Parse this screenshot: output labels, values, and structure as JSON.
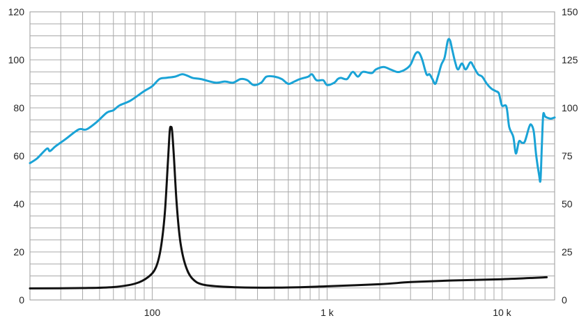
{
  "chart_data": {
    "type": "line",
    "x_scale": "log",
    "xlim": [
      20,
      20000
    ],
    "ylim_left": [
      0,
      120
    ],
    "ylim_right": [
      0,
      150
    ],
    "grid": true,
    "legend": "none",
    "x_tick_labels": [
      {
        "value": 100,
        "label": "100"
      },
      {
        "value": 1000,
        "label": "1 k"
      },
      {
        "value": 10000,
        "label": "10 k"
      }
    ],
    "y_left_ticks": [
      0,
      20,
      40,
      60,
      80,
      100,
      120
    ],
    "y_right_ticks": [
      0,
      25,
      50,
      75,
      100,
      125,
      150
    ],
    "series": [
      {
        "axis": "left",
        "color": "#1aa3d6",
        "points": [
          [
            20,
            57
          ],
          [
            22,
            59
          ],
          [
            25,
            63
          ],
          [
            26,
            62
          ],
          [
            28,
            64
          ],
          [
            32,
            67
          ],
          [
            38,
            71
          ],
          [
            42,
            71
          ],
          [
            48,
            74
          ],
          [
            55,
            78
          ],
          [
            60,
            79
          ],
          [
            65,
            81
          ],
          [
            75,
            83
          ],
          [
            90,
            87
          ],
          [
            100,
            89
          ],
          [
            110,
            92
          ],
          [
            120,
            92.5
          ],
          [
            135,
            93
          ],
          [
            150,
            94
          ],
          [
            170,
            92.5
          ],
          [
            190,
            92
          ],
          [
            230,
            90.5
          ],
          [
            260,
            91
          ],
          [
            290,
            90.5
          ],
          [
            320,
            92
          ],
          [
            350,
            91.5
          ],
          [
            380,
            89.5
          ],
          [
            420,
            90.5
          ],
          [
            450,
            93
          ],
          [
            500,
            93
          ],
          [
            550,
            92
          ],
          [
            600,
            90
          ],
          [
            650,
            91
          ],
          [
            700,
            92
          ],
          [
            780,
            93
          ],
          [
            820,
            94
          ],
          [
            870,
            91.5
          ],
          [
            950,
            91.5
          ],
          [
            1000,
            89.5
          ],
          [
            1100,
            90.5
          ],
          [
            1150,
            92
          ],
          [
            1200,
            92.5
          ],
          [
            1300,
            92
          ],
          [
            1400,
            95
          ],
          [
            1500,
            93
          ],
          [
            1600,
            95
          ],
          [
            1800,
            94.5
          ],
          [
            1900,
            96
          ],
          [
            2100,
            97
          ],
          [
            2300,
            96
          ],
          [
            2500,
            95
          ],
          [
            2600,
            95
          ],
          [
            2800,
            96
          ],
          [
            3000,
            98
          ],
          [
            3200,
            102.5
          ],
          [
            3350,
            103
          ],
          [
            3500,
            100
          ],
          [
            3700,
            94
          ],
          [
            3850,
            94
          ],
          [
            4000,
            92
          ],
          [
            4150,
            90
          ],
          [
            4300,
            93
          ],
          [
            4500,
            98
          ],
          [
            4700,
            101
          ],
          [
            4900,
            108
          ],
          [
            5050,
            108
          ],
          [
            5200,
            104
          ],
          [
            5400,
            99
          ],
          [
            5600,
            96
          ],
          [
            5900,
            98.5
          ],
          [
            6200,
            96
          ],
          [
            6600,
            99
          ],
          [
            6900,
            97
          ],
          [
            7300,
            94
          ],
          [
            7700,
            93
          ],
          [
            8200,
            90
          ],
          [
            8700,
            88
          ],
          [
            9200,
            87
          ],
          [
            9600,
            86
          ],
          [
            10000,
            81
          ],
          [
            10600,
            80.5
          ],
          [
            11000,
            72
          ],
          [
            11600,
            68
          ],
          [
            12000,
            61
          ],
          [
            12500,
            66
          ],
          [
            13000,
            65.5
          ],
          [
            13500,
            66
          ],
          [
            14300,
            72
          ],
          [
            14700,
            73
          ],
          [
            15200,
            70
          ],
          [
            15700,
            60
          ],
          [
            16300,
            52
          ],
          [
            16600,
            50
          ],
          [
            16900,
            64
          ],
          [
            17200,
            77
          ],
          [
            17600,
            76.5
          ],
          [
            18000,
            76
          ],
          [
            19000,
            75.5
          ],
          [
            20000,
            76
          ]
        ]
      },
      {
        "axis": "right",
        "color": "#111111",
        "points": [
          [
            20,
            6
          ],
          [
            40,
            6.2
          ],
          [
            60,
            6.7
          ],
          [
            80,
            8.5
          ],
          [
            95,
            12
          ],
          [
            105,
            17
          ],
          [
            112,
            27
          ],
          [
            118,
            45
          ],
          [
            123,
            72
          ],
          [
            126,
            88
          ],
          [
            128,
            90
          ],
          [
            130,
            88
          ],
          [
            133,
            75
          ],
          [
            138,
            50
          ],
          [
            145,
            30
          ],
          [
            155,
            18
          ],
          [
            170,
            11
          ],
          [
            200,
            7.8
          ],
          [
            300,
            6.6
          ],
          [
            500,
            6.4
          ],
          [
            800,
            6.8
          ],
          [
            1000,
            7.1
          ],
          [
            2000,
            8.2
          ],
          [
            3000,
            9.3
          ],
          [
            5000,
            10.1
          ],
          [
            10000,
            10.8
          ],
          [
            18000,
            11.8
          ]
        ]
      }
    ]
  }
}
